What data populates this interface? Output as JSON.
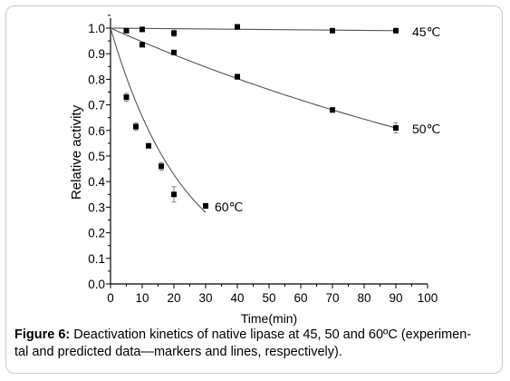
{
  "figure_label": "Figure 6:",
  "caption_line1": "Deactivation kinetics of native lipase at 45, 50 and 60ºC (experimen-",
  "caption_line2": "tal and predicted data—markers and lines, respectively).",
  "chart_data": {
    "type": "scatter",
    "xlabel": "Time(min)",
    "ylabel": "Relative activity",
    "xlim": [
      0,
      100
    ],
    "ylim": [
      0,
      1.0
    ],
    "xticks": [
      "0",
      "10",
      "20",
      "30",
      "40",
      "50",
      "60",
      "70",
      "80",
      "90",
      "100"
    ],
    "yticks": [
      "0.0",
      "0.1",
      "0.2",
      "0.3",
      "0.4",
      "0.5",
      "0.6",
      "0.7",
      "0.8",
      "0.9",
      "1.0"
    ],
    "grid": false,
    "series": [
      {
        "name": "45℃",
        "points": [
          [
            0,
            1.0
          ],
          [
            5,
            0.99
          ],
          [
            10,
            0.995
          ],
          [
            20,
            0.98
          ],
          [
            40,
            1.005
          ],
          [
            70,
            0.99
          ],
          [
            90,
            0.99
          ]
        ],
        "errors": [
          0,
          0.005,
          0.005,
          0.012,
          0.008,
          0.008,
          0.005
        ],
        "fit": [
          [
            0,
            1.0
          ],
          [
            90,
            0.99
          ]
        ]
      },
      {
        "name": "50℃",
        "points": [
          [
            0,
            1.0
          ],
          [
            10,
            0.935
          ],
          [
            20,
            0.905
          ],
          [
            40,
            0.81
          ],
          [
            70,
            0.68
          ],
          [
            90,
            0.61
          ]
        ],
        "errors": [
          0,
          0.006,
          0.006,
          0.01,
          0.006,
          0.02
        ],
        "fit_rate": 0.0055,
        "fit_range": [
          0,
          90
        ]
      },
      {
        "name": "60℃",
        "points": [
          [
            0,
            1.0
          ],
          [
            5,
            0.73
          ],
          [
            8,
            0.615
          ],
          [
            12,
            0.54
          ],
          [
            16,
            0.46
          ],
          [
            20,
            0.35
          ],
          [
            30,
            0.305
          ]
        ],
        "errors": [
          0,
          0.015,
          0.015,
          0.008,
          0.015,
          0.03,
          0.01
        ],
        "fit_rate": 0.0425,
        "fit_range": [
          0,
          30
        ]
      }
    ]
  }
}
